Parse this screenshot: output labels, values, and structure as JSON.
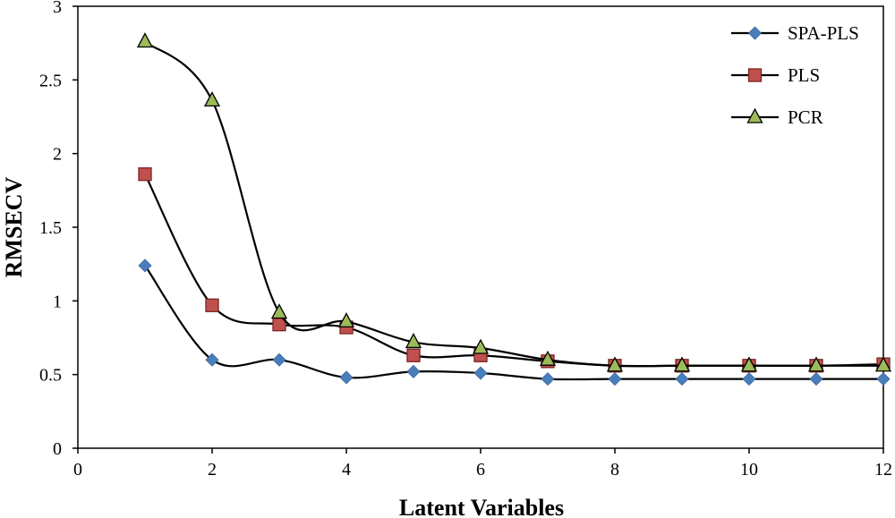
{
  "chart_data": {
    "type": "line",
    "title": "",
    "xlabel": "Latent Variables",
    "ylabel": "RMSECV",
    "xlim": [
      0,
      12
    ],
    "ylim": [
      0,
      3
    ],
    "x_ticks": [
      0,
      2,
      4,
      6,
      8,
      10,
      12
    ],
    "y_ticks": [
      0,
      0.5,
      1,
      1.5,
      2,
      2.5,
      3
    ],
    "x_tick_labels": [
      "0",
      "2",
      "4",
      "6",
      "8",
      "10",
      "12"
    ],
    "y_tick_labels": [
      "0",
      "0.5",
      "1",
      "1.5",
      "2",
      "2.5",
      "3"
    ],
    "grid": false,
    "legend_position": "top-right",
    "x": [
      1,
      2,
      3,
      4,
      5,
      6,
      7,
      8,
      9,
      10,
      11,
      12
    ],
    "series": [
      {
        "name": "SPA-PLS",
        "marker": "diamond",
        "color": "#4a7ebb",
        "values": [
          1.24,
          0.6,
          0.6,
          0.48,
          0.52,
          0.51,
          0.47,
          0.47,
          0.47,
          0.47,
          0.47,
          0.47
        ]
      },
      {
        "name": "PLS",
        "marker": "square",
        "color": "#c0504d",
        "values": [
          1.86,
          0.97,
          0.84,
          0.82,
          0.63,
          0.63,
          0.59,
          0.56,
          0.56,
          0.56,
          0.56,
          0.57
        ]
      },
      {
        "name": "PCR",
        "marker": "triangle",
        "color": "#9bbb59",
        "values": [
          2.76,
          2.36,
          0.92,
          0.86,
          0.72,
          0.68,
          0.6,
          0.56,
          0.56,
          0.56,
          0.56,
          0.56
        ]
      }
    ]
  }
}
